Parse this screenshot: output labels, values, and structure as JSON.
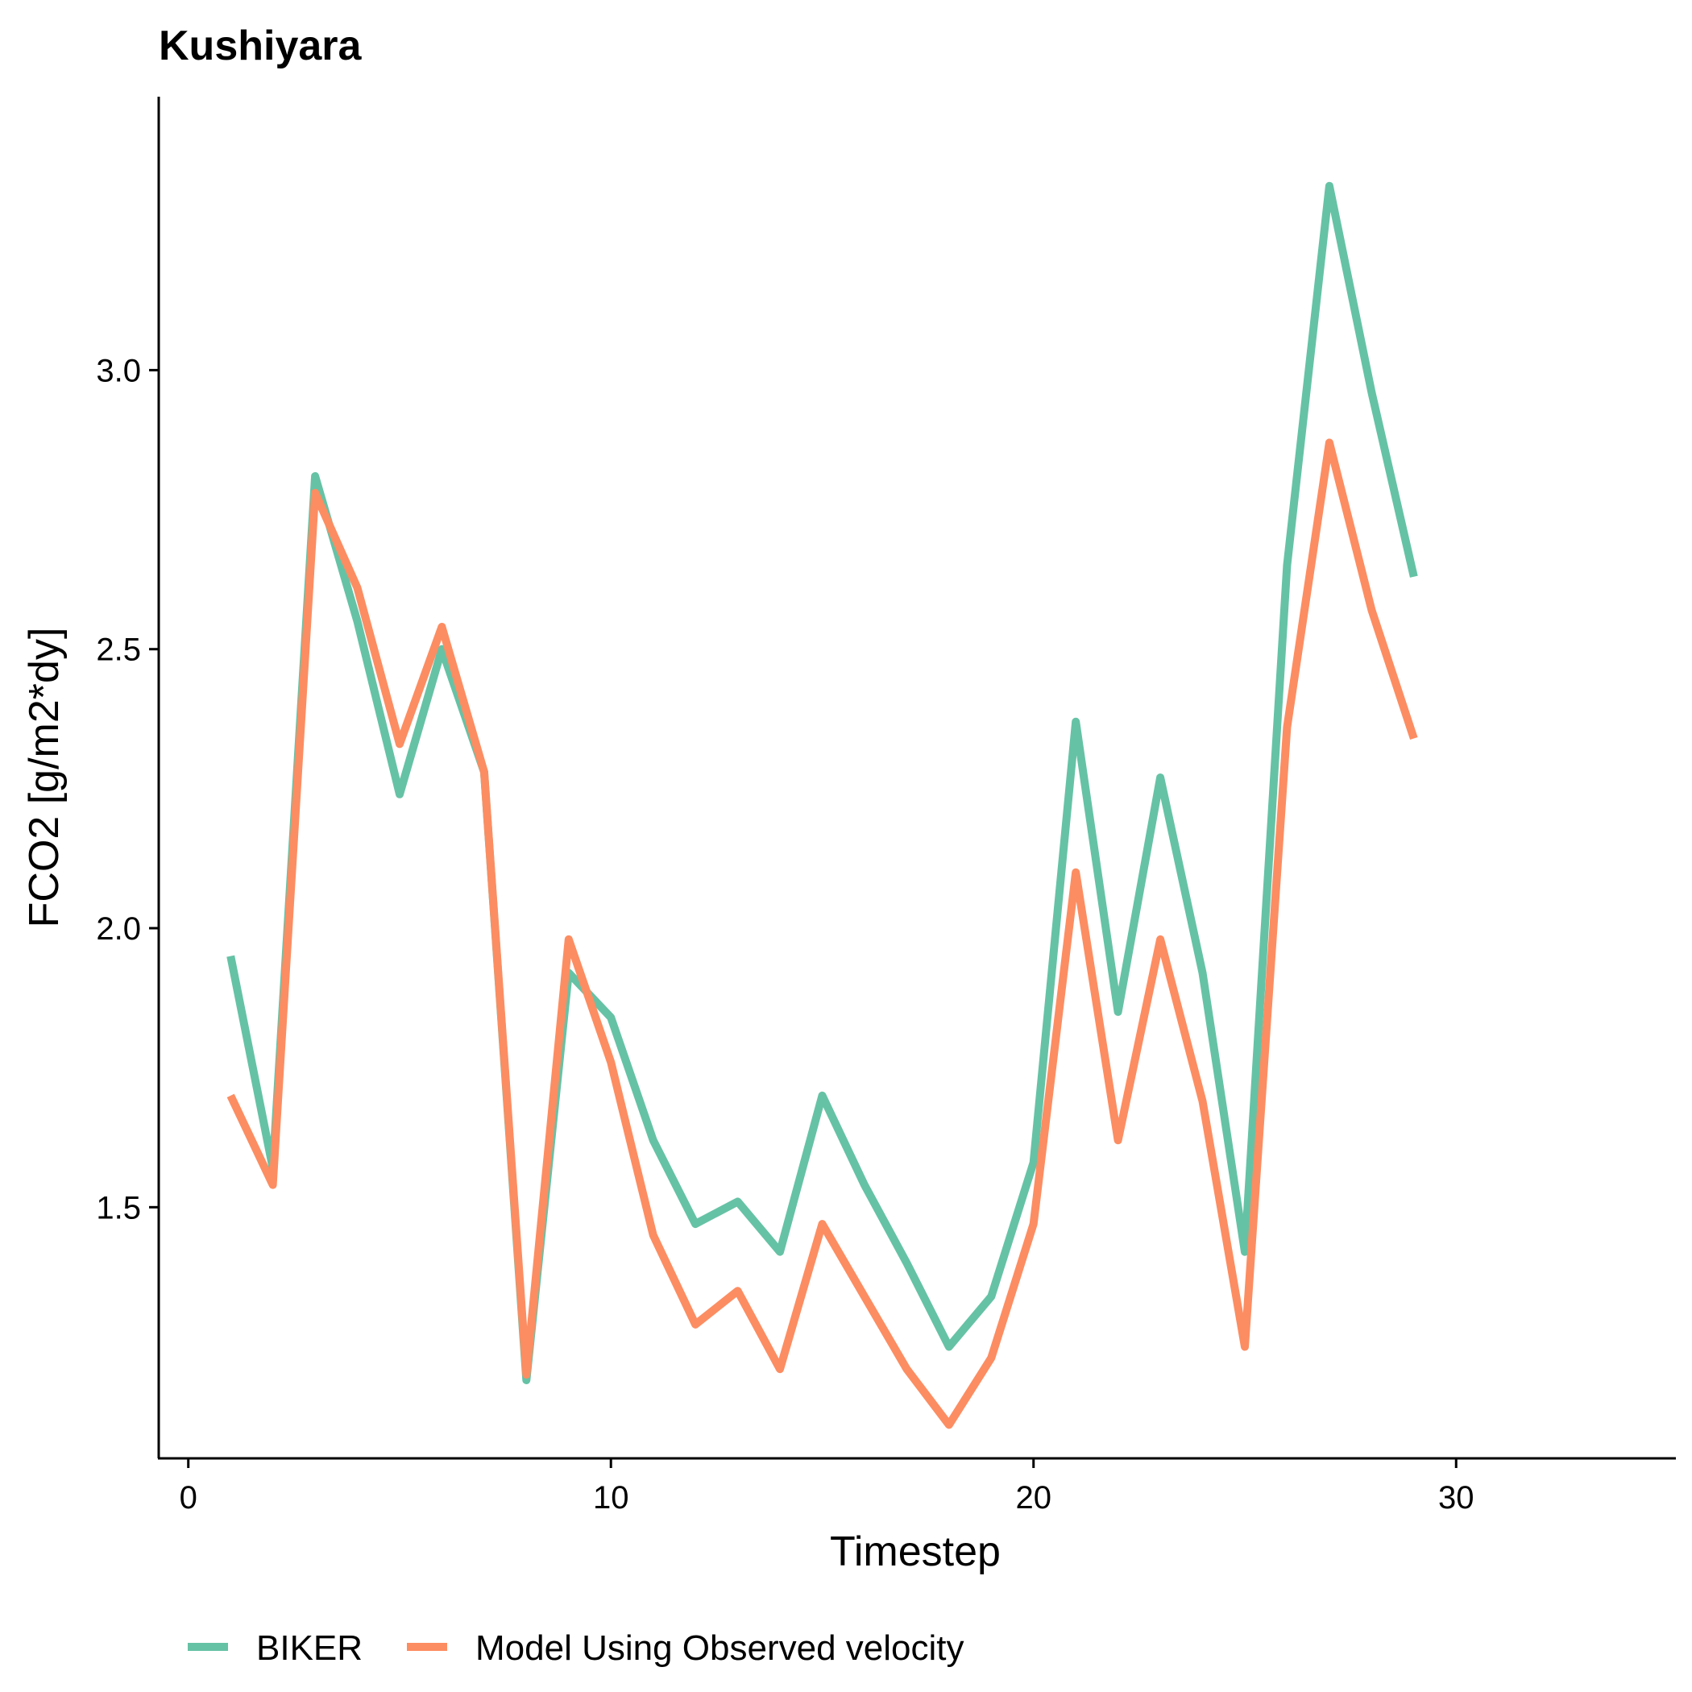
{
  "chart_data": {
    "type": "line",
    "title": "Kushiyara",
    "xlabel": "Timestep",
    "ylabel": "FCO2 [g/m2*dy]",
    "xlim": [
      -0.7,
      35.2
    ],
    "ylim": [
      1.05,
      3.49
    ],
    "x_ticks": [
      0,
      10,
      20,
      30
    ],
    "y_ticks": [
      1.5,
      2.0,
      2.5,
      3.0
    ],
    "x_tick_labels": [
      "0",
      "10",
      "20",
      "30"
    ],
    "y_tick_labels": [
      "1.5",
      "2.0",
      "2.5",
      "3.0"
    ],
    "grid": false,
    "legend_position": "bottom-left",
    "x": [
      1,
      2,
      3,
      4,
      5,
      6,
      7,
      8,
      9,
      10,
      11,
      12,
      13,
      14,
      15,
      16,
      17,
      18,
      19,
      20,
      21,
      22,
      23,
      24,
      25,
      26,
      27,
      28,
      29
    ],
    "series": [
      {
        "name": "BIKER",
        "color": "#66C2A5",
        "values": [
          1.95,
          1.57,
          2.81,
          2.55,
          2.24,
          2.5,
          2.28,
          1.19,
          1.92,
          1.84,
          1.62,
          1.47,
          1.51,
          1.42,
          1.7,
          1.54,
          1.4,
          1.25,
          1.34,
          1.58,
          2.37,
          1.85,
          2.27,
          1.92,
          1.42,
          2.65,
          3.33,
          2.96,
          2.63
        ]
      },
      {
        "name": "Model Using Observed velocity",
        "color": "#FC8D62",
        "values": [
          1.7,
          1.54,
          2.78,
          2.61,
          2.33,
          2.54,
          2.28,
          1.2,
          1.98,
          1.76,
          1.45,
          1.29,
          1.35,
          1.21,
          1.47,
          1.34,
          1.21,
          1.11,
          1.23,
          1.47,
          2.1,
          1.62,
          1.98,
          1.69,
          1.25,
          2.36,
          2.87,
          2.57,
          2.34
        ]
      }
    ]
  }
}
